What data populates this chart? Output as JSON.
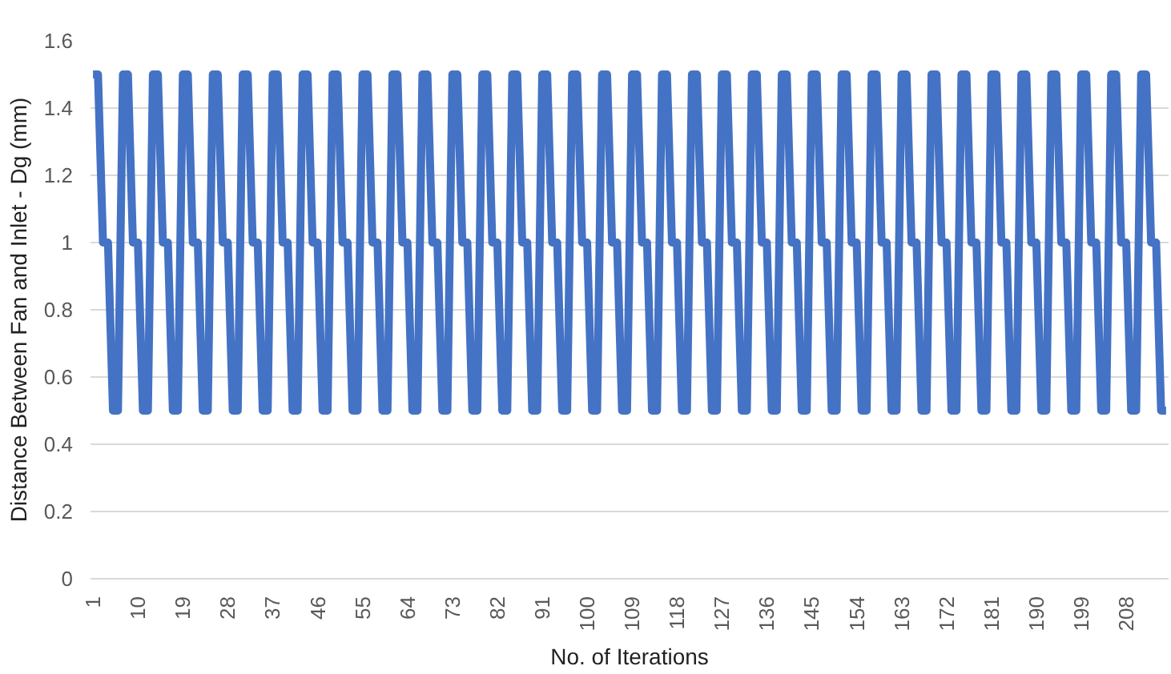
{
  "chart_data": {
    "type": "line",
    "xlabel": "No. of Iterations",
    "ylabel": "Distance Between Fan and Inlet - Dg (mm)",
    "categories": [
      "1",
      null,
      null,
      null,
      null,
      null,
      null,
      null,
      null,
      "10",
      null,
      null,
      null,
      null,
      null,
      null,
      null,
      null,
      "19",
      null,
      null,
      null,
      null,
      null,
      null,
      null,
      null,
      "28",
      null,
      null,
      null,
      null,
      null,
      null,
      null,
      null,
      "37",
      null,
      null,
      null,
      null,
      null,
      null,
      null,
      null,
      "46",
      null,
      null,
      null,
      null,
      null,
      null,
      null,
      null,
      "55",
      null,
      null,
      null,
      null,
      null,
      null,
      null,
      null,
      "64",
      null,
      null,
      null,
      null,
      null,
      null,
      null,
      null,
      "73",
      null,
      null,
      null,
      null,
      null,
      null,
      null,
      null,
      "82",
      null,
      null,
      null,
      null,
      null,
      null,
      null,
      null,
      "91",
      null,
      null,
      null,
      null,
      null,
      null,
      null,
      null,
      "100",
      null,
      null,
      null,
      null,
      null,
      null,
      null,
      null,
      "109",
      null,
      null,
      null,
      null,
      null,
      null,
      null,
      null,
      "118",
      null,
      null,
      null,
      null,
      null,
      null,
      null,
      null,
      "127",
      null,
      null,
      null,
      null,
      null,
      null,
      null,
      null,
      "136",
      null,
      null,
      null,
      null,
      null,
      null,
      null,
      null,
      "145",
      null,
      null,
      null,
      null,
      null,
      null,
      null,
      null,
      "154",
      null,
      null,
      null,
      null,
      null,
      null,
      null,
      null,
      "163",
      null,
      null,
      null,
      null,
      null,
      null,
      null,
      null,
      "172",
      null,
      null,
      null,
      null,
      null,
      null,
      null,
      null,
      "181",
      null,
      null,
      null,
      null,
      null,
      null,
      null,
      null,
      "190",
      null,
      null,
      null,
      null,
      null,
      null,
      null,
      null,
      "199",
      null,
      null,
      null,
      null,
      null,
      null,
      null,
      null,
      "208",
      null,
      null,
      null,
      null,
      null,
      null,
      null,
      null
    ],
    "series": [
      {
        "color": "#4472c4",
        "values": [
          1.5,
          1.5,
          1,
          1,
          0.5,
          0.5,
          1.5,
          1.5,
          1,
          1,
          0.5,
          0.5,
          1.5,
          1.5,
          1,
          1,
          0.5,
          0.5,
          1.5,
          1.5,
          1,
          1,
          0.5,
          0.5,
          1.5,
          1.5,
          1,
          1,
          0.5,
          0.5,
          1.5,
          1.5,
          1,
          1,
          0.5,
          0.5,
          1.5,
          1.5,
          1,
          1,
          0.5,
          0.5,
          1.5,
          1.5,
          1,
          1,
          0.5,
          0.5,
          1.5,
          1.5,
          1,
          1,
          0.5,
          0.5,
          1.5,
          1.5,
          1,
          1,
          0.5,
          0.5,
          1.5,
          1.5,
          1,
          1,
          0.5,
          0.5,
          1.5,
          1.5,
          1,
          1,
          0.5,
          0.5,
          1.5,
          1.5,
          1,
          1,
          0.5,
          0.5,
          1.5,
          1.5,
          1,
          1,
          0.5,
          0.5,
          1.5,
          1.5,
          1,
          1,
          0.5,
          0.5,
          1.5,
          1.5,
          1,
          1,
          0.5,
          0.5,
          1.5,
          1.5,
          1,
          1,
          0.5,
          0.5,
          1.5,
          1.5,
          1,
          1,
          0.5,
          0.5,
          1.5,
          1.5,
          1,
          1,
          0.5,
          0.5,
          1.5,
          1.5,
          1,
          1,
          0.5,
          0.5,
          1.5,
          1.5,
          1,
          1,
          0.5,
          0.5,
          1.5,
          1.5,
          1,
          1,
          0.5,
          0.5,
          1.5,
          1.5,
          1,
          1,
          0.5,
          0.5,
          1.5,
          1.5,
          1,
          1,
          0.5,
          0.5,
          1.5,
          1.5,
          1,
          1,
          0.5,
          0.5,
          1.5,
          1.5,
          1,
          1,
          0.5,
          0.5,
          1.5,
          1.5,
          1,
          1,
          0.5,
          0.5,
          1.5,
          1.5,
          1,
          1,
          0.5,
          0.5,
          1.5,
          1.5,
          1,
          1,
          0.5,
          0.5,
          1.5,
          1.5,
          1,
          1,
          0.5,
          0.5,
          1.5,
          1.5,
          1,
          1,
          0.5,
          0.5,
          1.5,
          1.5,
          1,
          1,
          0.5,
          0.5,
          1.5,
          1.5,
          1,
          1,
          0.5,
          0.5,
          1.5,
          1.5,
          1,
          1,
          0.5,
          0.5,
          1.5,
          1.5,
          1,
          1,
          0.5,
          0.5,
          1.5,
          1.5,
          1,
          1,
          0.5,
          0.5
        ]
      }
    ],
    "ylim": [
      0,
      1.6
    ],
    "yticks": [
      0,
      0.2,
      0.4,
      0.6,
      0.8,
      1,
      1.2,
      1.4,
      1.6
    ],
    "grid": "y",
    "marker": "none",
    "line_style": "solid"
  }
}
